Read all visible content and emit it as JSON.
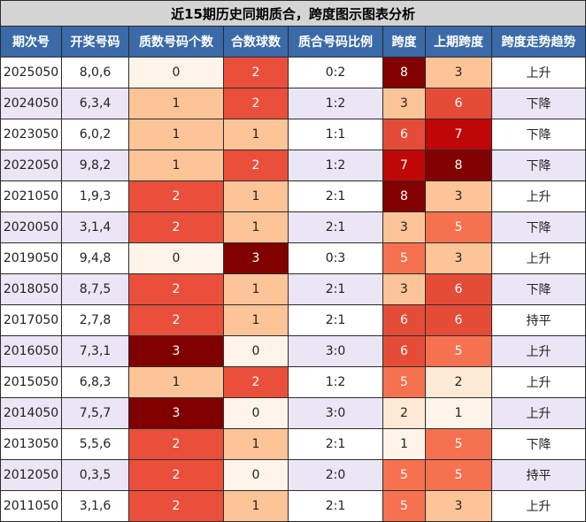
{
  "title": "近15期历史同期质合，跨度图示图表分析",
  "columns": [
    "期次号",
    "开奖号码",
    "质数号码个数",
    "合数球数",
    "质合号码比例",
    "跨度",
    "上期跨度",
    "跨度走势趋势"
  ],
  "palette": {
    "prime": {
      "0": "#fff4ea",
      "1": "#fdc497",
      "2": "#e94f3a",
      "3": "#800000"
    },
    "composite": {
      "0": "#fff4ea",
      "1": "#fdc497",
      "2": "#e94f3a",
      "3": "#800000"
    },
    "span": {
      "1": "#fff4ea",
      "2": "#feead6",
      "3": "#fdc497",
      "5": "#f5714f",
      "6": "#e54c37",
      "7": "#c00707",
      "8": "#820202"
    },
    "light_text_threshold": {
      "prime": 2,
      "composite": 2,
      "span": 5
    }
  },
  "chart_data": {
    "type": "table",
    "rows": [
      {
        "issue": "2025050",
        "numbers": "8,0,6",
        "prime_count": 0,
        "composite_count": 2,
        "ratio": "0:2",
        "span": 8,
        "prev_span": 3,
        "trend": "上升"
      },
      {
        "issue": "2024050",
        "numbers": "6,3,4",
        "prime_count": 1,
        "composite_count": 2,
        "ratio": "1:2",
        "span": 3,
        "prev_span": 6,
        "trend": "下降"
      },
      {
        "issue": "2023050",
        "numbers": "6,0,2",
        "prime_count": 1,
        "composite_count": 1,
        "ratio": "1:1",
        "span": 6,
        "prev_span": 7,
        "trend": "下降"
      },
      {
        "issue": "2022050",
        "numbers": "9,8,2",
        "prime_count": 1,
        "composite_count": 2,
        "ratio": "1:2",
        "span": 7,
        "prev_span": 8,
        "trend": "下降"
      },
      {
        "issue": "2021050",
        "numbers": "1,9,3",
        "prime_count": 2,
        "composite_count": 1,
        "ratio": "2:1",
        "span": 8,
        "prev_span": 3,
        "trend": "上升"
      },
      {
        "issue": "2020050",
        "numbers": "3,1,4",
        "prime_count": 2,
        "composite_count": 1,
        "ratio": "2:1",
        "span": 3,
        "prev_span": 5,
        "trend": "下降"
      },
      {
        "issue": "2019050",
        "numbers": "9,4,8",
        "prime_count": 0,
        "composite_count": 3,
        "ratio": "0:3",
        "span": 5,
        "prev_span": 3,
        "trend": "上升"
      },
      {
        "issue": "2018050",
        "numbers": "8,7,5",
        "prime_count": 2,
        "composite_count": 1,
        "ratio": "2:1",
        "span": 3,
        "prev_span": 6,
        "trend": "下降"
      },
      {
        "issue": "2017050",
        "numbers": "2,7,8",
        "prime_count": 2,
        "composite_count": 1,
        "ratio": "2:1",
        "span": 6,
        "prev_span": 6,
        "trend": "持平"
      },
      {
        "issue": "2016050",
        "numbers": "7,3,1",
        "prime_count": 3,
        "composite_count": 0,
        "ratio": "3:0",
        "span": 6,
        "prev_span": 5,
        "trend": "上升"
      },
      {
        "issue": "2015050",
        "numbers": "6,8,3",
        "prime_count": 1,
        "composite_count": 2,
        "ratio": "1:2",
        "span": 5,
        "prev_span": 2,
        "trend": "上升"
      },
      {
        "issue": "2014050",
        "numbers": "7,5,7",
        "prime_count": 3,
        "composite_count": 0,
        "ratio": "3:0",
        "span": 2,
        "prev_span": 1,
        "trend": "上升"
      },
      {
        "issue": "2013050",
        "numbers": "5,5,6",
        "prime_count": 2,
        "composite_count": 1,
        "ratio": "2:1",
        "span": 1,
        "prev_span": 5,
        "trend": "下降"
      },
      {
        "issue": "2012050",
        "numbers": "0,3,5",
        "prime_count": 2,
        "composite_count": 0,
        "ratio": "2:0",
        "span": 5,
        "prev_span": 5,
        "trend": "持平"
      },
      {
        "issue": "2011050",
        "numbers": "3,1,6",
        "prime_count": 2,
        "composite_count": 1,
        "ratio": "2:1",
        "span": 5,
        "prev_span": 3,
        "trend": "上升"
      }
    ]
  }
}
